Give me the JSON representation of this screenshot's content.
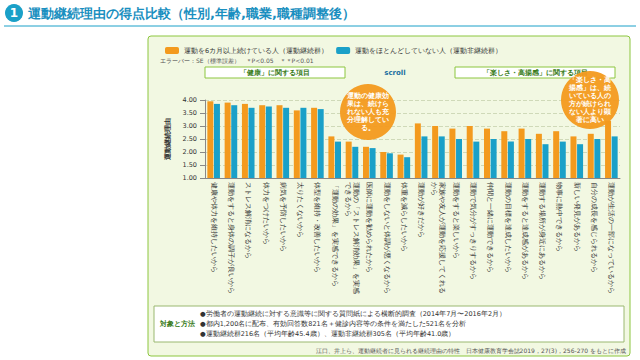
{
  "chart_data": {
    "type": "bar",
    "title_number": "1",
    "title": "運動継続理由の得点比較（性別,年齢,職業,職種調整後）",
    "note": "エラーバー：SE（標準誤差）　＊P<0.05　＊＊P<0.01",
    "y_label": "運動継続理由",
    "sections": [
      "「健康」に関する項目",
      "「楽しさ・高揚感」に関する項目"
    ],
    "annotations": [
      "scroll",
      "運動の健康効果は、続けられない人も充分理解している。",
      "「楽しさ・高揚感」は、続いている人の方が続けられない人より顕著に高い"
    ],
    "categories": [
      "健康や体力を維持したいから",
      "運動をすると身体の調子が良いから",
      "ストレス解消になるから",
      "体力をつけたいから",
      "病気を予防したいから",
      "太りたくないから",
      "体型を維持・改善したいから",
      "「運動の効果」を実感できるから",
      "運動の「ストレス解消効果」を実感できるから",
      "医師に運動を勧められたから",
      "運動をしないと体調が悪くなるから",
      "体重を減らしたいから",
      "運動が好きだから",
      "家族や友人が運動を応援してくれるから",
      "運動をすると楽しいから",
      "運動で気分がすっきりするから",
      "仲間と一緒に運動できるから",
      "運動の目標を達成したいから",
      "運動をすると達成感があるから",
      "運動する場所が身近にあるから",
      "物事に熱中できるから",
      "新しい発見があるから",
      "自分の成長を感じられるから",
      "運動が生活の一部になっているから"
    ],
    "series": [
      {
        "name": "運動を6カ月以上続けている人（運動継続群）",
        "color": "#f39a1e",
        "values": [
          3.95,
          3.9,
          3.85,
          3.8,
          3.8,
          3.6,
          3.7,
          2.6,
          2.4,
          2.2,
          2.0,
          1.9,
          3.1,
          3.0,
          2.9,
          3.0,
          2.9,
          2.8,
          2.9,
          2.7,
          2.8,
          2.6,
          2.7,
          3.2
        ]
      },
      {
        "name": "運動をほとんどしていない人（運動非継続群）",
        "color": "#1aa0c8",
        "values": [
          3.85,
          3.8,
          3.7,
          3.75,
          3.7,
          3.7,
          3.65,
          2.4,
          2.2,
          2.15,
          1.95,
          1.8,
          2.6,
          2.6,
          2.5,
          2.4,
          2.5,
          2.4,
          2.5,
          2.3,
          2.4,
          2.3,
          2.5,
          2.6
        ]
      }
    ],
    "ylim": [
      1,
      4
    ],
    "yticks": [
      {
        "value": 1,
        "label": "1.00"
      },
      {
        "value": 1.5,
        "label": "1.50"
      },
      {
        "value": 2,
        "label": "2.00"
      },
      {
        "value": 2.5,
        "label": "2.50"
      },
      {
        "value": 3,
        "label": "3.00"
      },
      {
        "value": 3.5,
        "label": "3.50"
      },
      {
        "value": 4,
        "label": "4.00"
      }
    ],
    "grid": true,
    "legend": "top",
    "footer": {
      "heading": "対象と方法",
      "lines": [
        "●労働者の運動継続に対する意識等に関する質問紙による横断的調査（2014年7月〜2016年2月）",
        "●都内1,200名に配布、有効回答数821名＋健診内容等の条件を満たした521名を分析",
        "●運動継続群216名（平均年齢45.4歳）、運動非継続群305名（平均年齢41.0歳）"
      ]
    },
    "source": "江口、井上ら、運動継続者に見られる継続理由の特性　日本健康教育学会誌2019，27(3)，256-270 をもとに作成"
  }
}
